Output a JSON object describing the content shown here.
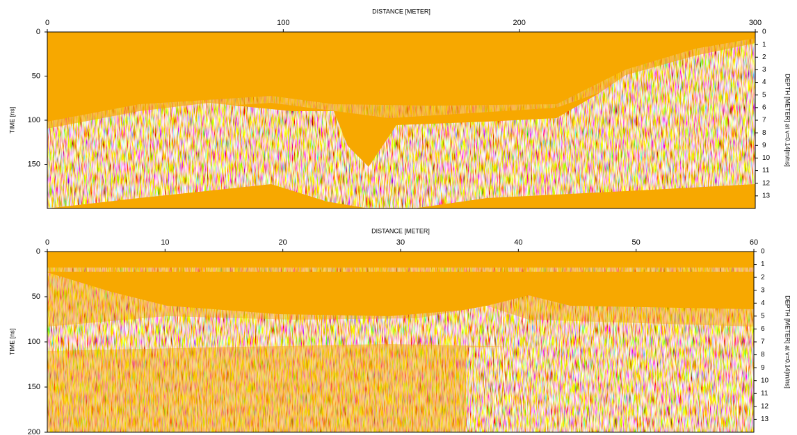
{
  "chart_data": [
    {
      "type": "radargram",
      "x_label": "DISTANCE [METER]",
      "y_label": "TIME [ns]",
      "y2_label": "DEPTH [METER] at v=0.14[m/ns]",
      "xlim": [
        0,
        300
      ],
      "xticks": [
        0,
        100,
        200,
        300
      ],
      "ylim": [
        0,
        200
      ],
      "yticks": [
        0,
        50,
        100,
        150
      ],
      "y2lim": [
        0,
        14
      ],
      "y2ticks": [
        0,
        1,
        2,
        3,
        4,
        5,
        6,
        7,
        8,
        9,
        10,
        11,
        12,
        13
      ],
      "color": "#f7a800"
    },
    {
      "type": "radargram",
      "x_label": "DISTANCE [METER]",
      "y_label": "TIME [ns]",
      "y2_label": "DEPTH [METER] at v=0.14[m/ns]",
      "xlim": [
        0,
        60
      ],
      "xticks": [
        0,
        10,
        20,
        30,
        40,
        50,
        60
      ],
      "ylim": [
        0,
        200
      ],
      "yticks": [
        0,
        50,
        100,
        150,
        200
      ],
      "y2lim": [
        0,
        14
      ],
      "y2ticks": [
        0,
        1,
        2,
        3,
        4,
        5,
        6,
        7,
        8,
        9,
        10,
        11,
        12,
        13
      ],
      "color": "#f7a800"
    }
  ]
}
